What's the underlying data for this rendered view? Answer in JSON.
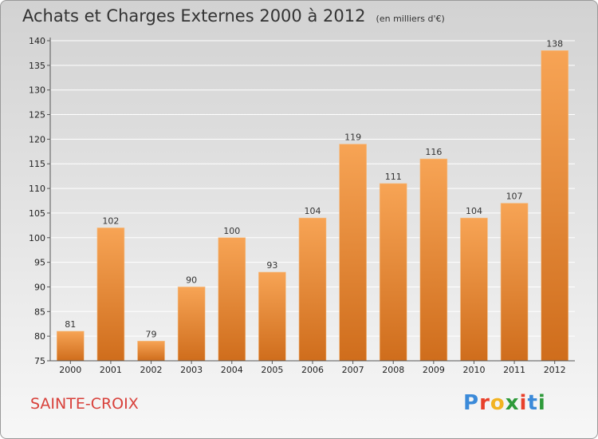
{
  "title": "Achats et Charges Externes 2000 à 2012",
  "unit": "(en milliers d'€)",
  "commune": "SAINTE-CROIX",
  "logo": {
    "letters": [
      "P",
      "r",
      "o",
      "x",
      "i",
      "t",
      "i"
    ],
    "colors": [
      "#3b8ad9",
      "#e8402a",
      "#f2b322",
      "#2e9a3a",
      "#e8402a",
      "#3b8ad9",
      "#2e9a3a"
    ]
  },
  "colors": {
    "bar_light": "#f7a455",
    "bar_dark": "#cf6d1c",
    "axis": "#555555",
    "grid": "#ffffff"
  },
  "chart_data": {
    "type": "bar",
    "title": "Achats et Charges Externes 2000 à 2012",
    "subtitle": "(en milliers d'€)",
    "categories": [
      "2000",
      "2001",
      "2002",
      "2003",
      "2004",
      "2005",
      "2006",
      "2007",
      "2008",
      "2009",
      "2010",
      "2011",
      "2012"
    ],
    "values": [
      81,
      102,
      79,
      90,
      100,
      93,
      104,
      119,
      111,
      116,
      104,
      107,
      138
    ],
    "ylim": [
      75,
      140
    ],
    "yticks": [
      75,
      80,
      85,
      90,
      95,
      100,
      105,
      110,
      115,
      120,
      125,
      130,
      135,
      140
    ],
    "grid": true,
    "xlabel": "",
    "ylabel": ""
  }
}
